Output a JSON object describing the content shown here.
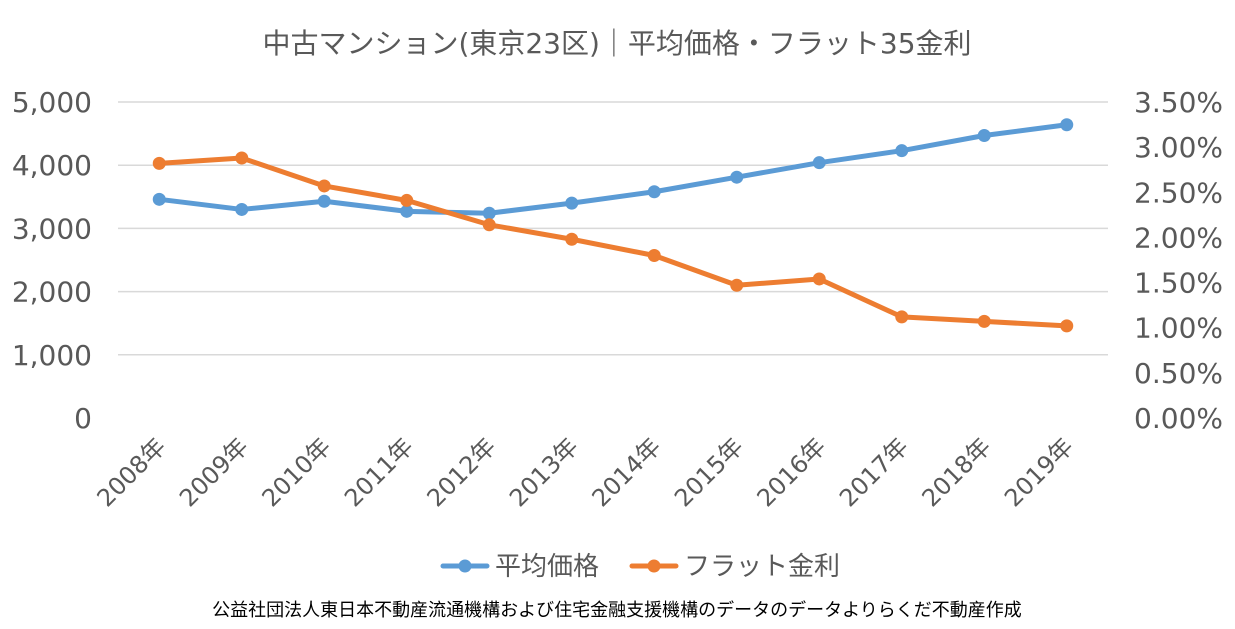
{
  "chart_data": {
    "type": "line",
    "title": "中古マンション(東京23区)｜平均価格・フラット35金利",
    "categories": [
      "2008年",
      "2009年",
      "2010年",
      "2011年",
      "2012年",
      "2013年",
      "2014年",
      "2015年",
      "2016年",
      "2017年",
      "2018年",
      "2019年"
    ],
    "series": [
      {
        "name": "平均価格",
        "axis": "left",
        "color": "#5b9bd5",
        "values": [
          3460,
          3300,
          3430,
          3270,
          3240,
          3400,
          3580,
          3810,
          4040,
          4230,
          4470,
          4640
        ]
      },
      {
        "name": "フラット金利",
        "axis": "right",
        "color": "#ed7d31",
        "values": [
          2.82,
          2.88,
          2.57,
          2.41,
          2.14,
          1.98,
          1.8,
          1.47,
          1.54,
          1.12,
          1.07,
          1.02
        ]
      }
    ],
    "y_left": {
      "ylim": [
        0,
        5000
      ],
      "ticks": [
        "0",
        "1,000",
        "2,000",
        "3,000",
        "4,000",
        "5,000"
      ]
    },
    "y_right": {
      "ylim": [
        0,
        3.5
      ],
      "ticks": [
        "0.00%",
        "0.50%",
        "1.00%",
        "1.50%",
        "2.00%",
        "2.50%",
        "3.00%",
        "3.50%"
      ]
    },
    "grid": true,
    "legend_position": "bottom",
    "source_note": "公益社団法人東日本不動産流通機構および住宅金融支援機構のデータのデータよりらくだ不動産作成"
  }
}
